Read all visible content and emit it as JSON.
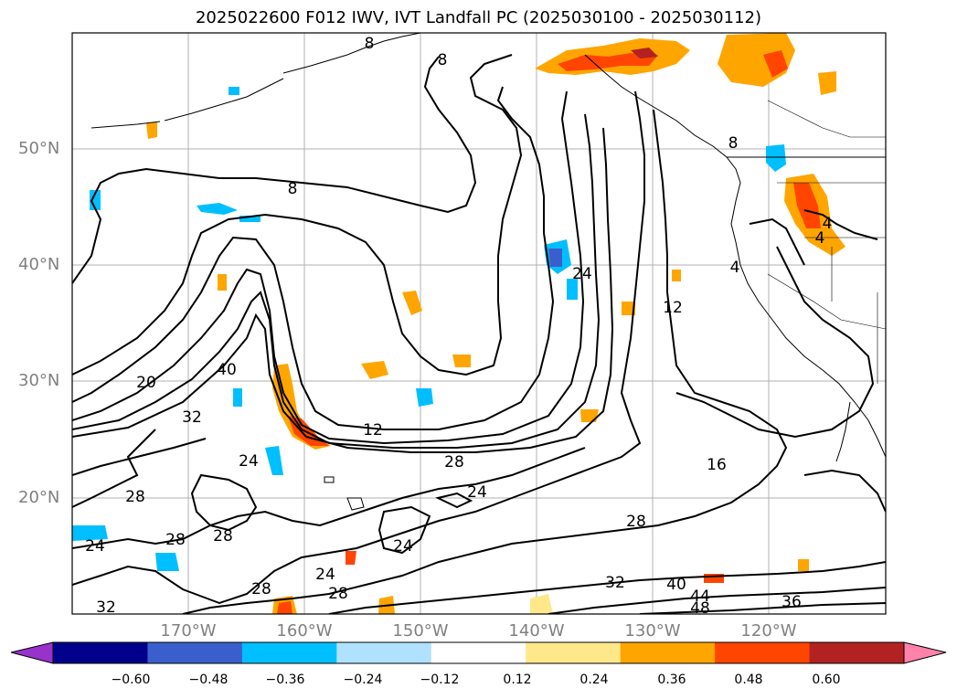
{
  "title": "2025022600 F012 IWV, IVT Landfall PC (2025030100 - 2025030112)",
  "latitudes": [
    "50°N",
    "40°N",
    "30°N",
    "20°N"
  ],
  "longitudes": [
    "170°W",
    "160°W",
    "150°W",
    "140°W",
    "130°W",
    "120°W"
  ],
  "colorbar": {
    "colors": [
      "#9932CC",
      "#00008B",
      "#3A5FCD",
      "#00BFFF",
      "#B0E2FF",
      "#FFFFFF",
      "#FFE88A",
      "#FFA500",
      "#FF4500",
      "#B22222",
      "#FF82AB"
    ],
    "ticks": [
      "−0.60",
      "−0.48",
      "−0.36",
      "−0.24",
      "−0.12",
      "0.12",
      "0.24",
      "0.36",
      "0.48",
      "0.60"
    ]
  },
  "contour_labels": [
    "8",
    "8",
    "8",
    "4",
    "4",
    "4",
    "8",
    "12",
    "16",
    "20",
    "24",
    "24",
    "24",
    "24",
    "24",
    "24",
    "28",
    "28",
    "28",
    "28",
    "28",
    "28",
    "28",
    "32",
    "32",
    "32",
    "36",
    "40",
    "40",
    "44",
    "48",
    "12"
  ]
}
